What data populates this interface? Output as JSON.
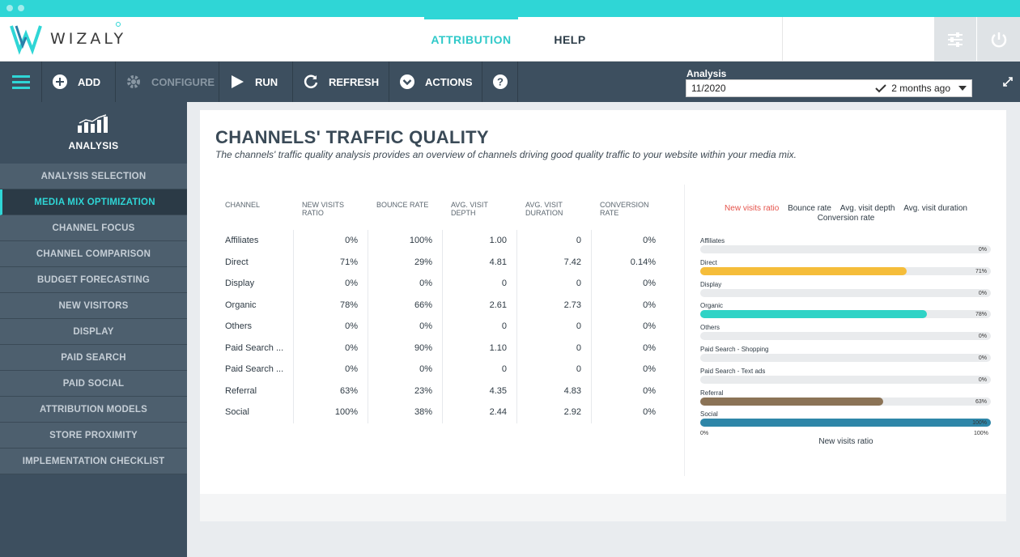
{
  "brand": {
    "name": "WIZALY",
    "accent": "#2fd6d6"
  },
  "nav": {
    "tabs": [
      {
        "label": "ATTRIBUTION",
        "active": true
      },
      {
        "label": "HELP",
        "active": false
      }
    ]
  },
  "header_icons": [
    "settings-sliders-icon",
    "power-icon"
  ],
  "toolbar": {
    "buttons": [
      {
        "label": "ADD",
        "icon": "plus-circle-icon"
      },
      {
        "label": "CONFIGURE",
        "icon": "gear-icon",
        "disabled": true
      },
      {
        "label": "RUN",
        "icon": "play-icon"
      },
      {
        "label": "REFRESH",
        "icon": "refresh-icon"
      },
      {
        "label": "ACTIONS",
        "icon": "chevron-circle-icon"
      },
      {
        "label": "",
        "icon": "help-icon"
      }
    ],
    "analysis_label": "Analysis",
    "analysis_value": "11/2020",
    "analysis_age": "2 months ago"
  },
  "sidebar": {
    "title": "ANALYSIS",
    "items": [
      {
        "label": "ANALYSIS SELECTION"
      },
      {
        "label": "MEDIA MIX OPTIMIZATION",
        "active": true
      },
      {
        "label": "CHANNEL FOCUS"
      },
      {
        "label": "CHANNEL COMPARISON"
      },
      {
        "label": "BUDGET FORECASTING"
      },
      {
        "label": "NEW VISITORS"
      },
      {
        "label": "DISPLAY"
      },
      {
        "label": "PAID SEARCH"
      },
      {
        "label": "PAID SOCIAL"
      },
      {
        "label": "ATTRIBUTION MODELS"
      },
      {
        "label": "STORE PROXIMITY"
      },
      {
        "label": "IMPLEMENTATION CHECKLIST"
      }
    ]
  },
  "main": {
    "title": "CHANNELS' TRAFFIC QUALITY",
    "description": "The channels' traffic quality analysis provides an overview of channels driving good quality traffic to your website within your media mix.",
    "table": {
      "headers": [
        "CHANNEL",
        "NEW VISITS RATIO",
        "BOUNCE RATE",
        "AVG. VISIT DEPTH",
        "AVG. VISIT DURATION",
        "CONVERSION RATE"
      ],
      "rows": [
        [
          "Affiliates",
          "0%",
          "100%",
          "1.00",
          "0",
          "0%"
        ],
        [
          "Direct",
          "71%",
          "29%",
          "4.81",
          "7.42",
          "0.14%"
        ],
        [
          "Display",
          "0%",
          "0%",
          "0",
          "0",
          "0%"
        ],
        [
          "Organic",
          "78%",
          "66%",
          "2.61",
          "2.73",
          "0%"
        ],
        [
          "Others",
          "0%",
          "0%",
          "0",
          "0",
          "0%"
        ],
        [
          "Paid Search ...",
          "0%",
          "90%",
          "1.10",
          "0",
          "0%"
        ],
        [
          "Paid Search ...",
          "0%",
          "0%",
          "0",
          "0",
          "0%"
        ],
        [
          "Referral",
          "63%",
          "23%",
          "4.35",
          "4.83",
          "0%"
        ],
        [
          "Social",
          "100%",
          "38%",
          "2.44",
          "2.92",
          "0%"
        ]
      ]
    },
    "legend": {
      "items": [
        "New visits ratio",
        "Bounce rate",
        "Avg. visit depth",
        "Avg. visit duration"
      ],
      "items_line2": [
        "Conversion rate"
      ],
      "active_index": 0
    }
  },
  "chart_data": {
    "type": "bar",
    "orientation": "horizontal",
    "categories": [
      "Affiliates",
      "Direct",
      "Display",
      "Organic",
      "Others",
      "Paid Search - Shopping",
      "Paid Search - Text ads",
      "Referral",
      "Social"
    ],
    "values": [
      0,
      71,
      0,
      78,
      0,
      0,
      0,
      63,
      100
    ],
    "value_labels": [
      "0%",
      "71%",
      "0%",
      "78%",
      "0%",
      "0%",
      "0%",
      "63%",
      "100%"
    ],
    "colors": [
      "#e9ebed",
      "#f5bd3a",
      "#e9ebed",
      "#2fd3c6",
      "#e9ebed",
      "#e9ebed",
      "#e9ebed",
      "#8b7356",
      "#2e86a8"
    ],
    "xlabel": "New visits ratio",
    "xlim": [
      0,
      100
    ],
    "axis_labels": [
      "0%",
      "100%"
    ]
  }
}
